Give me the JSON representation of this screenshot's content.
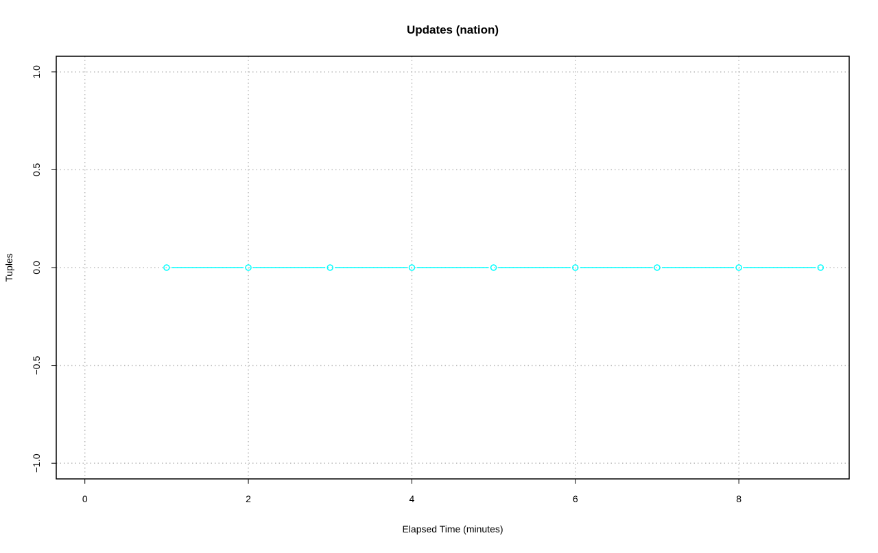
{
  "chart_data": {
    "type": "line",
    "title": "Updates (nation)",
    "xlabel": "Elapsed Time (minutes)",
    "ylabel": "Tuples",
    "xlim": [
      -0.35,
      9.35
    ],
    "ylim": [
      -1.08,
      1.08
    ],
    "xticks": [
      0,
      2,
      4,
      6,
      8
    ],
    "xtick_labels": [
      "0",
      "2",
      "4",
      "6",
      "8"
    ],
    "yticks": [
      -1.0,
      -0.5,
      0.0,
      0.5,
      1.0
    ],
    "ytick_labels": [
      "−1.0",
      "−0.5",
      "0.0",
      "0.5",
      "1.0"
    ],
    "grid": true,
    "series": [
      {
        "color": "#00ffff",
        "marker": "open-circle",
        "x": [
          1,
          2,
          3,
          4,
          5,
          6,
          7,
          8,
          9
        ],
        "y": [
          0,
          0,
          0,
          0,
          0,
          0,
          0,
          0,
          0
        ]
      }
    ]
  }
}
